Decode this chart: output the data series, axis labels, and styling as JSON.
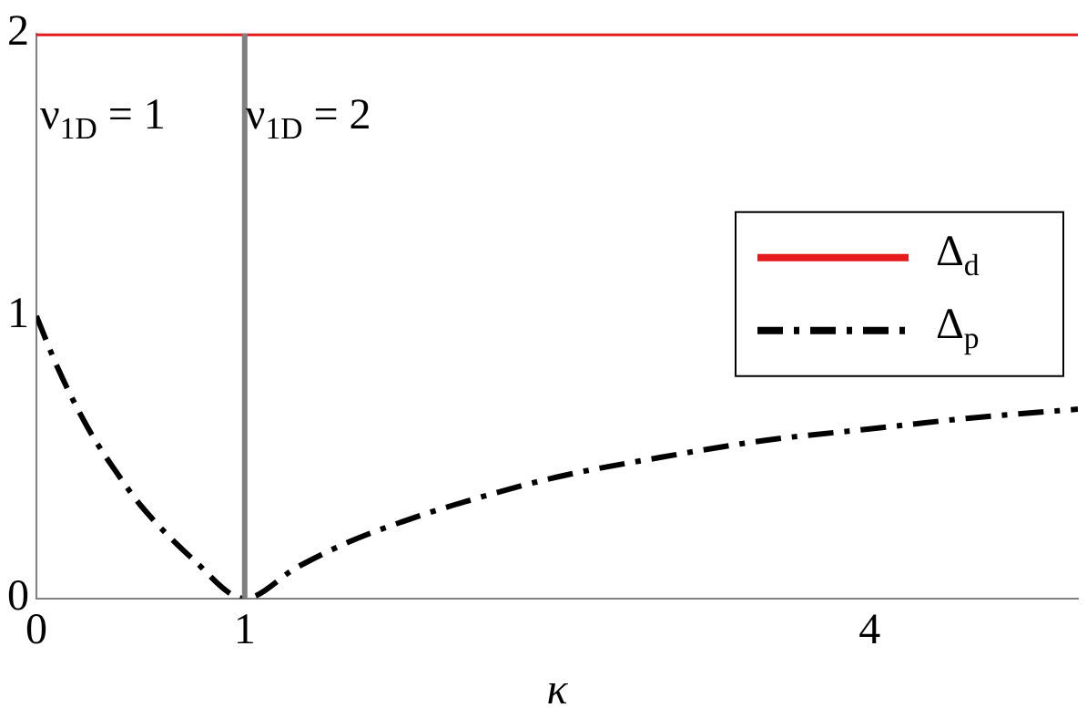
{
  "chart_data": {
    "type": "line",
    "xlabel": "κ",
    "xlim": [
      0,
      5
    ],
    "xticks": [
      0,
      1,
      4
    ],
    "ylim": [
      0,
      2
    ],
    "yticks": [
      0,
      1,
      2
    ],
    "grid": false,
    "legend": "right",
    "marker": "none",
    "series": [
      {
        "name": "Δ$_{d}$",
        "color": "#e41a1c",
        "line_style": "solid",
        "x": [
          0,
          5
        ],
        "values": [
          2,
          2
        ]
      },
      {
        "name": "Δ$_{p}$",
        "color": "#000000",
        "line_style": "dashdot",
        "x": [
          0,
          0.1,
          0.25,
          0.4,
          0.5,
          0.75,
          1,
          1.25,
          1.5,
          1.75,
          2,
          2.5,
          3,
          3.5,
          4,
          4.5,
          5
        ],
        "values": [
          1,
          0.82,
          0.6,
          0.43,
          0.33,
          0.14,
          0,
          0.11,
          0.2,
          0.27,
          0.33,
          0.43,
          0.5,
          0.56,
          0.6,
          0.64,
          0.67
        ]
      }
    ],
    "ref_lines": [
      {
        "axis": "x",
        "value": 1,
        "color": "#808080",
        "line_style": "solid"
      }
    ],
    "annotations": [
      "ν$_{1D}$ = 1",
      "ν$_{1D}$ = 2"
    ]
  }
}
